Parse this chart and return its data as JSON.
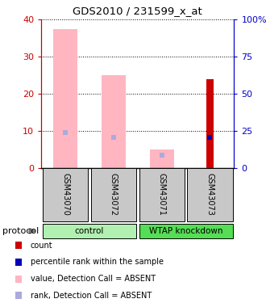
{
  "title": "GDS2010 / 231599_x_at",
  "samples": [
    "GSM43070",
    "GSM43072",
    "GSM43071",
    "GSM43073"
  ],
  "groups": [
    {
      "label": "control",
      "span": [
        0,
        2
      ]
    },
    {
      "label": "WTAP knockdown",
      "span": [
        2,
        4
      ]
    }
  ],
  "pink_bar_values": [
    37.5,
    25.0,
    5.0,
    0.0
  ],
  "blue_rank_values": [
    24.0,
    21.0,
    9.0,
    0.0
  ],
  "red_bar_values": [
    0.0,
    0.0,
    0.0,
    24.0
  ],
  "blue_pct_values": [
    0.0,
    0.0,
    0.0,
    21.0
  ],
  "ylim_left": [
    0,
    40
  ],
  "ylim_right": [
    0,
    100
  ],
  "yticks_left": [
    0,
    10,
    20,
    30,
    40
  ],
  "yticks_right": [
    0,
    25,
    50,
    75,
    100
  ],
  "ytick_labels_right": [
    "0",
    "25",
    "50",
    "75",
    "100%"
  ],
  "left_axis_color": "#cc0000",
  "right_axis_color": "#0000cc",
  "pink_color": "#FFB6C1",
  "red_color": "#cc0000",
  "blue_light_color": "#aaaadd",
  "blue_dark_color": "#0000bb",
  "bg_label": "#c8c8c8",
  "bg_group_light": "#b0f0b0",
  "bg_group_dark": "#55dd55",
  "protocol_label": "protocol",
  "legend_items": [
    {
      "color": "#cc0000",
      "label": "count"
    },
    {
      "color": "#0000bb",
      "label": "percentile rank within the sample"
    },
    {
      "color": "#FFB6C1",
      "label": "value, Detection Call = ABSENT"
    },
    {
      "color": "#aaaadd",
      "label": "rank, Detection Call = ABSENT"
    }
  ]
}
